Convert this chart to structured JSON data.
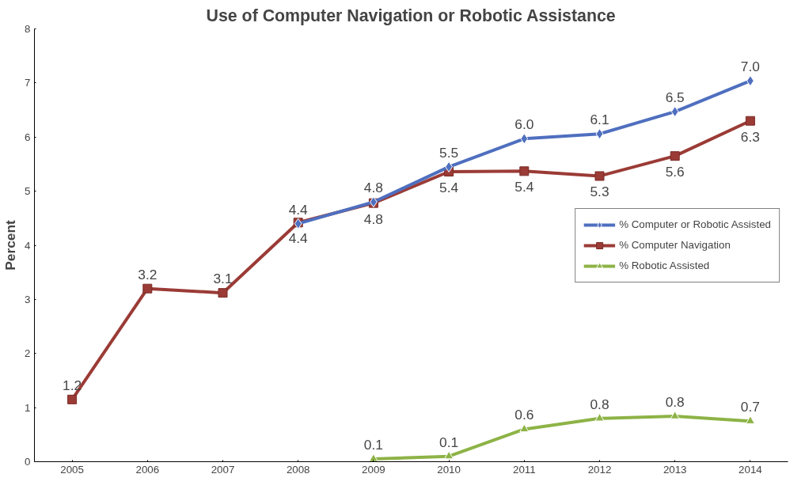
{
  "chart_data": {
    "type": "line",
    "title": "Use of Computer Navigation or Robotic Assistance",
    "ylabel": "Percent",
    "categories": [
      "2005",
      "2006",
      "2007",
      "2008",
      "2009",
      "2010",
      "2011",
      "2012",
      "2013",
      "2014"
    ],
    "ylim": [
      0,
      8
    ],
    "yticks": [
      0,
      1,
      2,
      3,
      4,
      5,
      6,
      7,
      8
    ],
    "grid": false,
    "legend": "right",
    "data_labels": true,
    "series": [
      {
        "name": "% Computer or Robotic Assisted",
        "color": "#4f6fbf",
        "marker": "diamond",
        "values": [
          null,
          null,
          null,
          4.4,
          4.8,
          5.45,
          5.97,
          6.06,
          6.47,
          7.04
        ],
        "value_labels": [
          null,
          null,
          null,
          "4.4",
          "4.8",
          "5.5",
          "6.0",
          "6.1",
          "6.5",
          "7.0"
        ]
      },
      {
        "name": "% Computer Navigation",
        "color": "#9b3b36",
        "marker": "square",
        "values": [
          1.15,
          3.2,
          3.12,
          4.42,
          4.78,
          5.36,
          5.37,
          5.28,
          5.65,
          6.3
        ],
        "value_labels": [
          "1.2",
          "3.2",
          "3.1",
          "4.4",
          "4.8",
          "5.4",
          "5.4",
          "5.3",
          "5.6",
          "6.3"
        ]
      },
      {
        "name": "% Robotic Assisted",
        "color": "#8db346",
        "marker": "triangle",
        "values": [
          null,
          null,
          null,
          null,
          0.05,
          0.1,
          0.6,
          0.8,
          0.84,
          0.75
        ],
        "value_labels": [
          null,
          null,
          null,
          null,
          "0.1",
          "0.1",
          "0.6",
          "0.8",
          "0.8",
          "0.7"
        ]
      }
    ]
  }
}
